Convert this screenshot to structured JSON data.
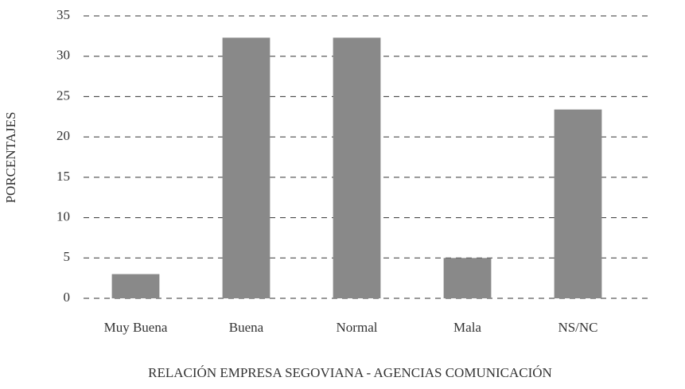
{
  "chart_data": {
    "type": "bar",
    "xlabel": "RELACIÓN EMPRESA SEGOVIANA - AGENCIAS COMUNICACIÓN",
    "ylabel": "PORCENTAJES",
    "categories": [
      "Muy Buena",
      "Buena",
      "Normal",
      "Mala",
      "NS/NC"
    ],
    "values": [
      3,
      32.3,
      32.3,
      5,
      23.4
    ],
    "color": "#898989",
    "ylim": [
      0,
      35
    ],
    "yticks": [
      0,
      5,
      10,
      15,
      20,
      25,
      30,
      35
    ],
    "grid": true
  }
}
